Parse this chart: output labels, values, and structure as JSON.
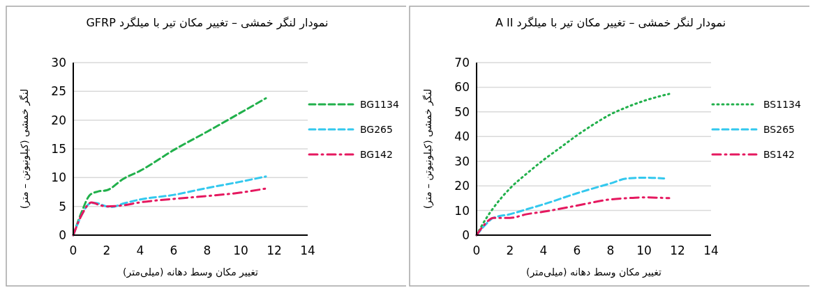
{
  "chart_data": [
    {
      "type": "line",
      "title": "نمودار لنگر خمشی – تغییر مکان تیر با میلگرد GFRP",
      "xlabel": "تغییر مکان وسط دهانه (میلی‌متر)",
      "ylabel": "لنگر خمشی (کیلونیوتن – متر)",
      "xlim": [
        0,
        14
      ],
      "xticks": [
        0,
        2,
        4,
        6,
        8,
        10,
        12,
        14
      ],
      "ylim": [
        0,
        30
      ],
      "yticks": [
        0,
        5,
        10,
        15,
        20,
        25,
        30
      ],
      "grid": "y",
      "legend": "right",
      "series": [
        {
          "name": "BG1134",
          "color": "#21b04b",
          "line_style": "dashed",
          "x": [
            0,
            0.5,
            1,
            1.5,
            2,
            3,
            4,
            6,
            8,
            10,
            11.5
          ],
          "values": [
            0,
            4,
            7,
            7.6,
            7.8,
            9.8,
            11.2,
            14.8,
            18,
            21.3,
            23.8
          ]
        },
        {
          "name": "BG265",
          "color": "#33c8ee",
          "line_style": "dashed",
          "x": [
            0,
            0.5,
            1,
            1.3,
            2,
            2.3,
            3,
            4,
            6,
            8,
            10,
            11.5
          ],
          "values": [
            0,
            3.5,
            5.5,
            5.6,
            5,
            4.9,
            5.5,
            6.2,
            7,
            8.2,
            9.3,
            10.2
          ]
        },
        {
          "name": "BG142",
          "color": "#e5185f",
          "line_style": "dashdot",
          "x": [
            0,
            0.5,
            1.1,
            1.5,
            2,
            3,
            4,
            6,
            8,
            10,
            11.5
          ],
          "values": [
            0,
            3.5,
            5.7,
            5.3,
            5,
            5.2,
            5.7,
            6.3,
            6.8,
            7.4,
            8.1
          ]
        }
      ]
    },
    {
      "type": "line",
      "title": "نمودار لنگر خمشی – تغییر مکان تیر با میلگرد A II",
      "xlabel": "تغییر مکان وسط دهانه (میلی‌متر)",
      "ylabel": "لنگر خمشی (کیلونیوتن – متر)",
      "xlim": [
        0,
        14
      ],
      "xticks": [
        0,
        2,
        4,
        6,
        8,
        10,
        12,
        14
      ],
      "ylim": [
        0,
        70
      ],
      "yticks": [
        0,
        10,
        20,
        30,
        40,
        50,
        60,
        70
      ],
      "grid": "y",
      "legend": "right",
      "series": [
        {
          "name": "BS1134",
          "color": "#21b04b",
          "line_style": "dotted",
          "x": [
            0,
            0.5,
            1,
            2,
            3,
            4,
            5,
            6,
            7,
            8,
            9,
            10,
            11.5
          ],
          "values": [
            0,
            6,
            11,
            19,
            25,
            30.5,
            35.5,
            40.5,
            45,
            49,
            52,
            54.5,
            57.3
          ]
        },
        {
          "name": "BS265",
          "color": "#33c8ee",
          "line_style": "dashed",
          "x": [
            0,
            0.5,
            1,
            2,
            3,
            4,
            6,
            8,
            9,
            10,
            11.2
          ],
          "values": [
            0,
            4,
            7,
            8.5,
            10.5,
            12.5,
            17,
            21,
            23,
            23.3,
            23
          ]
        },
        {
          "name": "BS142",
          "color": "#e5185f",
          "line_style": "dashdot",
          "x": [
            0,
            0.5,
            1,
            2,
            3,
            4,
            6,
            8,
            9,
            10,
            11.5
          ],
          "values": [
            0,
            4.5,
            7,
            7,
            8.5,
            9.5,
            12,
            14.5,
            15,
            15.3,
            15
          ]
        }
      ]
    }
  ]
}
